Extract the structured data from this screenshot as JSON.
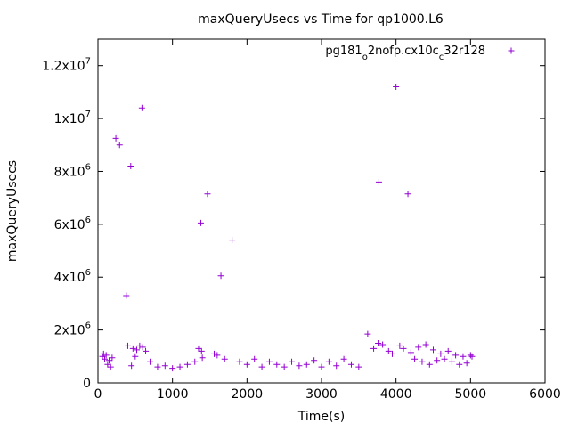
{
  "chart_data": {
    "type": "scatter",
    "title": "maxQueryUsecs vs Time for qp1000.L6",
    "xlabel": "Time(s)",
    "ylabel": "maxQueryUsecs",
    "xlim": [
      0,
      6000
    ],
    "ylim": [
      0,
      13000000
    ],
    "x_ticks": [
      {
        "value": 0,
        "label": "0"
      },
      {
        "value": 1000,
        "label": "1000"
      },
      {
        "value": 2000,
        "label": "2000"
      },
      {
        "value": 3000,
        "label": "3000"
      },
      {
        "value": 4000,
        "label": "4000"
      },
      {
        "value": 5000,
        "label": "5000"
      },
      {
        "value": 6000,
        "label": "6000"
      }
    ],
    "y_ticks": [
      {
        "value": 0,
        "mantissa": "0",
        "exp": ""
      },
      {
        "value": 2000000,
        "mantissa": "2x10",
        "exp": "6"
      },
      {
        "value": 4000000,
        "mantissa": "4x10",
        "exp": "6"
      },
      {
        "value": 6000000,
        "mantissa": "6x10",
        "exp": "6"
      },
      {
        "value": 8000000,
        "mantissa": "8x10",
        "exp": "6"
      },
      {
        "value": 10000000,
        "mantissa": "1x10",
        "exp": "7"
      },
      {
        "value": 12000000,
        "mantissa": "1.2x10",
        "exp": "7"
      }
    ],
    "grid": false,
    "legend": {
      "position": "top-right",
      "marker": "+"
    },
    "series": [
      {
        "name_parts": [
          {
            "text": "pg181",
            "sub": false
          },
          {
            "text": "o",
            "sub": true
          },
          {
            "text": "2nofp.cx10c",
            "sub": false
          },
          {
            "text": "c",
            "sub": true
          },
          {
            "text": "32r128",
            "sub": false
          }
        ],
        "color": "#9400d3",
        "points": [
          [
            60,
            1000000
          ],
          [
            75,
            1100000
          ],
          [
            90,
            900000
          ],
          [
            110,
            1050000
          ],
          [
            130,
            700000
          ],
          [
            150,
            850000
          ],
          [
            170,
            600000
          ],
          [
            190,
            950000
          ],
          [
            240,
            9250000
          ],
          [
            290,
            9000000
          ],
          [
            380,
            3300000
          ],
          [
            440,
            8200000
          ],
          [
            590,
            10400000
          ],
          [
            400,
            1400000
          ],
          [
            470,
            1300000
          ],
          [
            520,
            1250000
          ],
          [
            560,
            1400000
          ],
          [
            600,
            1350000
          ],
          [
            640,
            1200000
          ],
          [
            500,
            1000000
          ],
          [
            450,
            650000
          ],
          [
            700,
            800000
          ],
          [
            800,
            600000
          ],
          [
            900,
            650000
          ],
          [
            1000,
            550000
          ],
          [
            1100,
            600000
          ],
          [
            1200,
            700000
          ],
          [
            1300,
            800000
          ],
          [
            1350,
            1300000
          ],
          [
            1390,
            1200000
          ],
          [
            1400,
            950000
          ],
          [
            1380,
            6050000
          ],
          [
            1470,
            7150000
          ],
          [
            1560,
            1100000
          ],
          [
            1600,
            1050000
          ],
          [
            1650,
            4050000
          ],
          [
            1800,
            5400000
          ],
          [
            1700,
            900000
          ],
          [
            1900,
            800000
          ],
          [
            2000,
            700000
          ],
          [
            2100,
            900000
          ],
          [
            2200,
            600000
          ],
          [
            2300,
            800000
          ],
          [
            2400,
            700000
          ],
          [
            2500,
            600000
          ],
          [
            2600,
            800000
          ],
          [
            2700,
            650000
          ],
          [
            2800,
            700000
          ],
          [
            2900,
            850000
          ],
          [
            3000,
            600000
          ],
          [
            3100,
            800000
          ],
          [
            3200,
            650000
          ],
          [
            3300,
            900000
          ],
          [
            3400,
            700000
          ],
          [
            3500,
            600000
          ],
          [
            3620,
            1850000
          ],
          [
            3700,
            1300000
          ],
          [
            3760,
            1500000
          ],
          [
            3820,
            1450000
          ],
          [
            3900,
            1200000
          ],
          [
            3950,
            1100000
          ],
          [
            3770,
            7600000
          ],
          [
            4000,
            11200000
          ],
          [
            4160,
            7150000
          ],
          [
            4050,
            1400000
          ],
          [
            4100,
            1300000
          ],
          [
            4200,
            1150000
          ],
          [
            4300,
            1350000
          ],
          [
            4400,
            1450000
          ],
          [
            4500,
            1250000
          ],
          [
            4600,
            1100000
          ],
          [
            4700,
            1200000
          ],
          [
            4800,
            1050000
          ],
          [
            4900,
            1000000
          ],
          [
            5000,
            1050000
          ],
          [
            5020,
            1000000
          ],
          [
            4250,
            900000
          ],
          [
            4350,
            800000
          ],
          [
            4450,
            700000
          ],
          [
            4550,
            850000
          ],
          [
            4650,
            900000
          ],
          [
            4750,
            800000
          ],
          [
            4850,
            700000
          ],
          [
            4950,
            750000
          ]
        ]
      }
    ]
  }
}
